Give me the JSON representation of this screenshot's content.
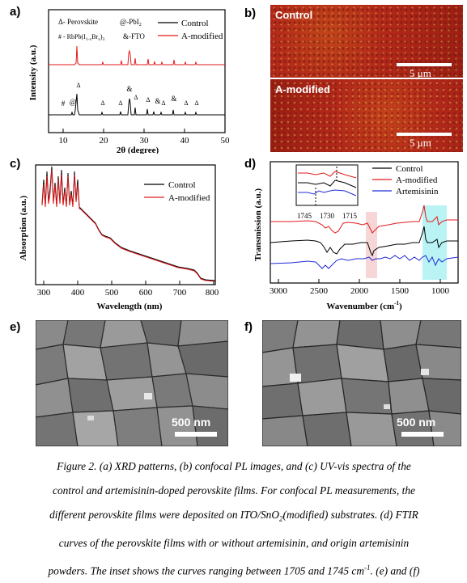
{
  "panels": {
    "a": {
      "label": "a)",
      "legend_markers": [
        "Δ- Perovskite",
        "@-PbI",
        "# - RbPb(I",
        "&-FTO"
      ],
      "legend_sub": {
        "pbi": "2",
        "rb_x": "1-x",
        "rb_br": "Br",
        "rb_x2": "x",
        "rb_tail": ")",
        "rb_3": "3"
      },
      "series_labels": [
        "Control",
        "A-modified"
      ],
      "colors": {
        "control": "#000000",
        "modified": "#e31a1c"
      },
      "ylabel": "Intensity (a.u.)",
      "xlabel": "2θ (degree)",
      "xticks": [
        "10",
        "20",
        "30",
        "40",
        "50"
      ],
      "peak_marks": [
        "#",
        "@",
        "Δ",
        "Δ",
        "Δ",
        "&",
        "Δ",
        "Δ",
        "&",
        "Δ",
        "&",
        "Δ",
        "Δ"
      ]
    },
    "b": {
      "label": "b)",
      "top_label": "Control",
      "bottom_label": "A-modified",
      "scale_text": "5 μm"
    },
    "c": {
      "label": "c)",
      "series_labels": [
        "Control",
        "A-modified"
      ],
      "ylabel": "Absorption (a.u.)",
      "xlabel": "Wavelength (nm)",
      "xticks": [
        "300",
        "400",
        "500",
        "600",
        "700",
        "800"
      ]
    },
    "d": {
      "label": "d)",
      "series_labels": [
        "Control",
        "A-modified",
        "Artemisinin"
      ],
      "colors": {
        "artemisinin": "#1f2bd6"
      },
      "ylabel": "Transmission (a.u.)",
      "xlabel": "Wavenumber (cm",
      "xlabel_sup": "-1",
      "xlabel_tail": ")",
      "xticks": [
        "3000",
        "2500",
        "2000",
        "1500",
        "1000"
      ],
      "inset_ticks": [
        "1745",
        "1730",
        "1715"
      ]
    },
    "e": {
      "label": "e)",
      "scale_text": "500 nm"
    },
    "f": {
      "label": "f)",
      "scale_text": "500 nm"
    }
  },
  "caption": {
    "line1": "Figure 2. (a) XRD patterns, (b) confocal PL images, and (c) UV-vis spectra of the",
    "line2": "control and artemisinin-doped perovskite films. For confocal PL measurements, the",
    "line3_a": "different perovskite films were deposited on ITO/SnO",
    "line3_sub": "2",
    "line3_b": "(modified) substrates. (d) FTIR",
    "line4": "curves of the perovskite films with or without artemisinin, and origin artemisinin",
    "line5_a": "powders. The inset shows the curves ranging between 1705 and 1745 cm",
    "line5_sup": "-1",
    "line5_b": ". (e) and (f)"
  }
}
